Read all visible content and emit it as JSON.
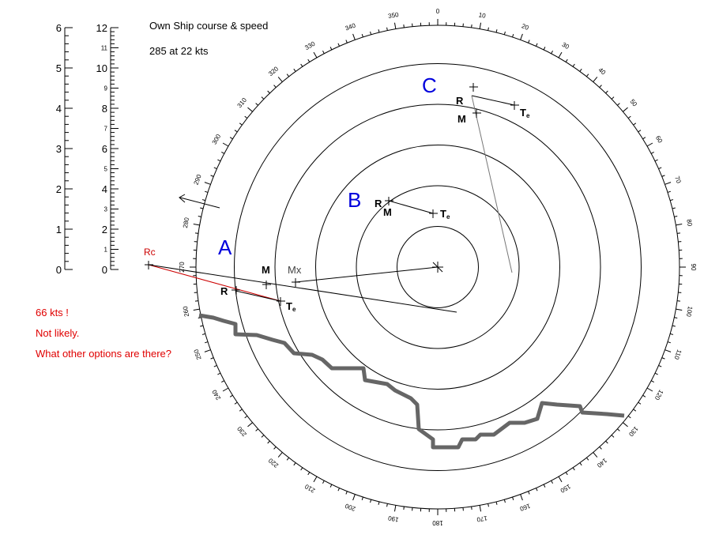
{
  "header": {
    "title": "Own Ship course & speed",
    "course_speed": "285  at 22 kts"
  },
  "notes": [
    "66 kts !",
    "Not likely.",
    "What other options are there?"
  ],
  "scales": {
    "left": {
      "max": 6,
      "labels": [
        "0",
        "1",
        "2",
        "3",
        "4",
        "5",
        "6"
      ]
    },
    "right": {
      "max": 12,
      "major_labels": [
        "0",
        "2",
        "4",
        "6",
        "8",
        "10",
        "12"
      ],
      "minor_labels": [
        "1",
        "3",
        "5",
        "7",
        "9",
        "11"
      ]
    }
  },
  "plot": {
    "ring_count": 5,
    "bearing_labels": [
      "0",
      "10",
      "20",
      "30",
      "40",
      "50",
      "60",
      "70",
      "80",
      "90",
      "100",
      "110",
      "120",
      "130",
      "140",
      "150",
      "160",
      "170",
      "180",
      "190",
      "200",
      "210",
      "220",
      "230",
      "240",
      "250",
      "260",
      "270",
      "280",
      "290",
      "300",
      "310",
      "320",
      "330",
      "340",
      "350"
    ]
  },
  "contacts": {
    "A": {
      "label": "A",
      "R": "R",
      "M": "M",
      "Mx": "Mx",
      "Te": "T",
      "Te_sub": "e",
      "Rc": "Rc"
    },
    "B": {
      "label": "B",
      "R": "R",
      "M": "M",
      "Te": "T",
      "Te_sub": "e"
    },
    "C": {
      "label": "C",
      "R": "R",
      "M": "M",
      "Te": "T",
      "Te_sub": "e"
    }
  },
  "colors": {
    "contact_label": "#0000dd",
    "relative_line": "#cc0000",
    "note": "#e00000",
    "coast": "#666666"
  }
}
